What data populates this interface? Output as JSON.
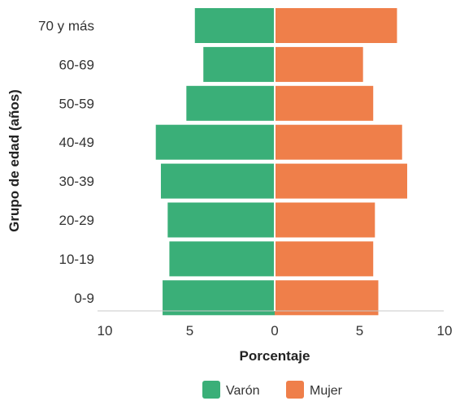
{
  "chart_data": {
    "type": "bar",
    "orientation": "horizontal",
    "layout": "diverging-population-pyramid",
    "categories": [
      "70 y más",
      "60-69",
      "50-59",
      "40-49",
      "30-39",
      "20-29",
      "10-19",
      "0-9"
    ],
    "series": [
      {
        "name": "Varón",
        "values": [
          4.7,
          4.2,
          5.2,
          7.0,
          6.7,
          6.3,
          6.2,
          6.6
        ],
        "color": "#3aaf78",
        "side": "left"
      },
      {
        "name": "Mujer",
        "values": [
          7.2,
          5.2,
          5.8,
          7.5,
          7.8,
          5.9,
          5.8,
          6.1
        ],
        "color": "#ef7f4a",
        "side": "right"
      }
    ],
    "xlabel": "Porcentaje",
    "ylabel": "Grupo de edad (años)",
    "xlim": [
      -10,
      10
    ],
    "xticks": [
      -10,
      -5,
      0,
      5,
      10
    ],
    "xtick_labels": [
      "10",
      "5",
      "0",
      "5",
      "10"
    ],
    "grid": false,
    "legend": {
      "position": "bottom-center",
      "entries": [
        "Varón",
        "Mujer"
      ]
    }
  }
}
